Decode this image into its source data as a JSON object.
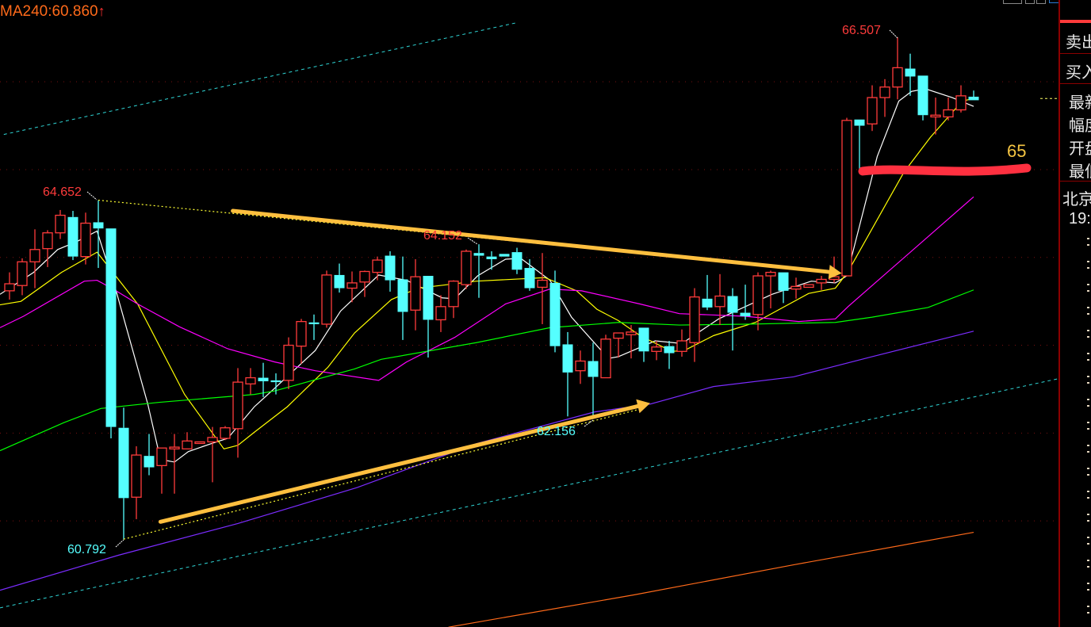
{
  "header": {
    "ma240_label": "MA240:60.860",
    "ma240_arrow": "↑"
  },
  "annotations": {
    "high_label": "66.507",
    "peak1_label": "64.652",
    "peak2_label": "64.152",
    "low1_label": "60.792",
    "low2_label": "62.156",
    "level_label": "65"
  },
  "right_panel": {
    "rows": [
      "卖出",
      "买入",
      "最新",
      "幅度",
      "开盘",
      "最低",
      "北京",
      "19:"
    ]
  },
  "colors": {
    "up": "#ff3b3b",
    "down": "#55ffff",
    "ma5": "#ffffff",
    "ma10": "#ffff00",
    "ma20": "#ff00ff",
    "ma60": "#00ff00",
    "ma120": "#7b2cff",
    "ma240": "#ff6a1a",
    "channel": "#2fd6d6",
    "arrows": "#ffbf3f",
    "highlight": "#ff3040",
    "grid": "#7a1010"
  },
  "chart_data": {
    "type": "candlestick",
    "title": "",
    "ylim": [
      59.8,
      67.0
    ],
    "grid": true,
    "grid_levels": [
      66,
      65,
      64,
      63,
      62,
      61
    ],
    "candles": [
      [
        63.62,
        63.7,
        63.83,
        63.52
      ],
      [
        63.68,
        63.95,
        63.99,
        63.57
      ],
      [
        63.95,
        64.09,
        64.32,
        63.65
      ],
      [
        64.1,
        64.28,
        64.31,
        63.89
      ],
      [
        64.28,
        64.48,
        64.54,
        64.21
      ],
      [
        64.46,
        64.01,
        64.53,
        63.97
      ],
      [
        64.01,
        64.39,
        64.51,
        63.92
      ],
      [
        64.4,
        64.33,
        64.65,
        63.88
      ],
      [
        64.33,
        62.07,
        64.33,
        61.94
      ],
      [
        62.06,
        61.26,
        62.29,
        60.79
      ],
      [
        61.27,
        61.75,
        61.85,
        61.02
      ],
      [
        61.74,
        61.61,
        61.99,
        61.52
      ],
      [
        61.63,
        61.83,
        61.83,
        61.31
      ],
      [
        61.82,
        61.84,
        61.99,
        61.31
      ],
      [
        61.82,
        61.91,
        62.01,
        61.82
      ],
      [
        61.9,
        61.9,
        61.9,
        61.9
      ],
      [
        61.9,
        61.95,
        62.07,
        61.44
      ],
      [
        61.94,
        62.06,
        62.08,
        61.92
      ],
      [
        62.05,
        62.58,
        62.74,
        61.72
      ],
      [
        62.56,
        62.63,
        62.74,
        62.44
      ],
      [
        62.63,
        62.59,
        62.8,
        62.41
      ],
      [
        62.6,
        62.58,
        62.68,
        62.44
      ],
      [
        62.6,
        63.0,
        63.09,
        62.5
      ],
      [
        62.99,
        63.27,
        63.3,
        62.79
      ],
      [
        63.26,
        63.24,
        63.35,
        63.06
      ],
      [
        63.24,
        63.8,
        63.85,
        63.2
      ],
      [
        63.8,
        63.65,
        63.93,
        63.6
      ],
      [
        63.65,
        63.71,
        63.84,
        63.49
      ],
      [
        63.72,
        63.84,
        63.85,
        63.55
      ],
      [
        63.83,
        63.97,
        64.01,
        63.74
      ],
      [
        64.02,
        63.74,
        64.07,
        63.61
      ],
      [
        63.75,
        63.38,
        64.01,
        63.06
      ],
      [
        63.4,
        63.78,
        63.98,
        63.17
      ],
      [
        63.79,
        63.29,
        63.79,
        62.86
      ],
      [
        63.29,
        63.44,
        63.57,
        63.15
      ],
      [
        63.44,
        63.73,
        63.74,
        63.31
      ],
      [
        63.69,
        64.07,
        64.09,
        63.64
      ],
      [
        64.05,
        64.02,
        64.15,
        63.54
      ],
      [
        64.01,
        63.98,
        64.07,
        63.86
      ],
      [
        64.04,
        64.01,
        64.04,
        64.01
      ],
      [
        64.06,
        63.86,
        64.11,
        63.81
      ],
      [
        63.88,
        63.65,
        63.98,
        63.62
      ],
      [
        63.66,
        63.74,
        64.05,
        63.24
      ],
      [
        63.71,
        62.99,
        63.85,
        62.92
      ],
      [
        63.01,
        62.69,
        63.15,
        62.19
      ],
      [
        62.71,
        62.82,
        62.94,
        62.56
      ],
      [
        62.82,
        62.64,
        63.03,
        62.16
      ],
      [
        62.63,
        63.07,
        63.12,
        62.63
      ],
      [
        63.08,
        63.14,
        63.14,
        62.86
      ],
      [
        63.12,
        63.15,
        63.23,
        62.85
      ],
      [
        63.2,
        62.93,
        63.2,
        62.81
      ],
      [
        62.93,
        62.98,
        63.05,
        62.83
      ],
      [
        62.99,
        62.91,
        63.05,
        62.73
      ],
      [
        62.93,
        63.05,
        63.18,
        62.87
      ],
      [
        63.03,
        63.55,
        63.65,
        62.81
      ],
      [
        63.53,
        63.43,
        63.8,
        63.4
      ],
      [
        63.44,
        63.56,
        63.81,
        63.23
      ],
      [
        63.56,
        63.37,
        63.65,
        62.94
      ],
      [
        63.37,
        63.33,
        63.69,
        63.29
      ],
      [
        63.35,
        63.79,
        63.83,
        63.17
      ],
      [
        63.79,
        63.83,
        63.85,
        63.42
      ],
      [
        63.83,
        63.62,
        63.83,
        63.48
      ],
      [
        63.64,
        63.67,
        63.77,
        63.53
      ],
      [
        63.66,
        63.69,
        63.69,
        63.66
      ],
      [
        63.71,
        63.75,
        63.79,
        63.63
      ],
      [
        63.75,
        63.78,
        64.01,
        63.71
      ],
      [
        63.79,
        65.56,
        65.59,
        63.79
      ],
      [
        65.57,
        65.5,
        65.57,
        64.98
      ],
      [
        65.52,
        65.82,
        65.96,
        65.44
      ],
      [
        65.82,
        65.94,
        66.03,
        65.6
      ],
      [
        65.94,
        66.16,
        66.507,
        65.8
      ],
      [
        66.15,
        66.06,
        66.32,
        65.84
      ],
      [
        66.07,
        65.62,
        66.07,
        65.56
      ],
      [
        65.6,
        65.62,
        65.82,
        65.4
      ],
      [
        65.6,
        65.68,
        65.82,
        65.56
      ],
      [
        65.68,
        65.84,
        65.96,
        65.65
      ],
      [
        65.83,
        65.79,
        65.9,
        65.79
      ]
    ],
    "candle_fields": [
      "open",
      "close",
      "high",
      "low"
    ],
    "moving_averages": [
      {
        "key": "ma5",
        "points": [
          [
            -0.75,
            63.58
          ],
          [
            1.9,
            63.83
          ],
          [
            3.8,
            64.09
          ],
          [
            5.3,
            64.18
          ],
          [
            6.9,
            64.3
          ],
          [
            8.4,
            63.62
          ],
          [
            10.9,
            62.33
          ],
          [
            11.9,
            61.7
          ],
          [
            13,
            61.67
          ],
          [
            14.1,
            61.79
          ],
          [
            15.9,
            61.88
          ],
          [
            17.2,
            61.94
          ],
          [
            19.3,
            62.3
          ],
          [
            20.9,
            62.51
          ],
          [
            24.1,
            62.94
          ],
          [
            26.1,
            63.39
          ],
          [
            29.1,
            63.8
          ],
          [
            31.3,
            63.74
          ],
          [
            34.1,
            63.54
          ],
          [
            35.1,
            63.53
          ],
          [
            36.9,
            63.79
          ],
          [
            39.1,
            63.98
          ],
          [
            40.3,
            63.99
          ],
          [
            42.6,
            63.74
          ],
          [
            44.3,
            63.32
          ],
          [
            47.2,
            62.85
          ],
          [
            48,
            62.87
          ],
          [
            50.9,
            63.05
          ],
          [
            53,
            63.02
          ],
          [
            55.9,
            63.3
          ],
          [
            60.1,
            63.58
          ],
          [
            63.2,
            63.73
          ],
          [
            65.1,
            63.71
          ],
          [
            66,
            63.79
          ],
          [
            68.4,
            65.15
          ],
          [
            70.1,
            65.78
          ],
          [
            71.1,
            65.89
          ],
          [
            72.2,
            65.92
          ],
          [
            74.3,
            65.82
          ],
          [
            76,
            65.72
          ]
        ]
      },
      {
        "key": "ma10",
        "points": [
          [
            -0.75,
            63.46
          ],
          [
            0.9,
            63.5
          ],
          [
            4.1,
            63.83
          ],
          [
            6.9,
            64.06
          ],
          [
            10.1,
            63.47
          ],
          [
            13.8,
            62.44
          ],
          [
            16.9,
            61.82
          ],
          [
            18,
            61.86
          ],
          [
            19.3,
            62.01
          ],
          [
            21.9,
            62.3
          ],
          [
            25.1,
            62.75
          ],
          [
            27.2,
            63.14
          ],
          [
            30.1,
            63.52
          ],
          [
            32.2,
            63.65
          ],
          [
            36.8,
            63.73
          ],
          [
            42.2,
            63.77
          ],
          [
            44.7,
            63.62
          ],
          [
            46.3,
            63.41
          ],
          [
            48,
            63.28
          ],
          [
            49.7,
            63.11
          ],
          [
            52.2,
            62.93
          ],
          [
            53.2,
            62.94
          ],
          [
            55.5,
            63.11
          ],
          [
            58.8,
            63.26
          ],
          [
            63,
            63.59
          ],
          [
            65.1,
            63.65
          ],
          [
            66.1,
            63.84
          ],
          [
            70.5,
            64.97
          ],
          [
            72.6,
            65.37
          ],
          [
            75.1,
            65.78
          ],
          [
            76,
            65.81
          ]
        ]
      },
      {
        "key": "ma20",
        "points": [
          [
            -0.75,
            63.2
          ],
          [
            1.1,
            63.33
          ],
          [
            5.9,
            63.73
          ],
          [
            6.9,
            63.74
          ],
          [
            8.4,
            63.62
          ],
          [
            10.1,
            63.47
          ],
          [
            13.4,
            63.21
          ],
          [
            17.2,
            62.96
          ],
          [
            20.9,
            62.81
          ],
          [
            24.1,
            62.71
          ],
          [
            29.1,
            62.6
          ],
          [
            31.3,
            62.81
          ],
          [
            35.1,
            63.09
          ],
          [
            39.1,
            63.47
          ],
          [
            42.6,
            63.64
          ],
          [
            45.1,
            63.62
          ],
          [
            49.7,
            63.47
          ],
          [
            52.8,
            63.36
          ],
          [
            58,
            63.33
          ],
          [
            62.2,
            63.27
          ],
          [
            65.1,
            63.3
          ],
          [
            66.1,
            63.44
          ],
          [
            68,
            63.68
          ],
          [
            76,
            64.69
          ]
        ]
      },
      {
        "key": "ma60",
        "points": [
          [
            -0.75,
            61.8
          ],
          [
            4.3,
            62.12
          ],
          [
            7.2,
            62.28
          ],
          [
            11.8,
            62.35
          ],
          [
            19.3,
            62.44
          ],
          [
            20.9,
            62.48
          ],
          [
            27.2,
            62.73
          ],
          [
            29.3,
            62.84
          ],
          [
            36.8,
            63.03
          ],
          [
            42.6,
            63.2
          ],
          [
            48,
            63.26
          ],
          [
            52.8,
            63.23
          ],
          [
            58,
            63.24
          ],
          [
            65.1,
            63.26
          ],
          [
            68,
            63.32
          ],
          [
            72.4,
            63.43
          ],
          [
            76,
            63.63
          ]
        ]
      },
      {
        "key": "ma120",
        "points": [
          [
            -0.75,
            60.21
          ],
          [
            8.6,
            60.61
          ],
          [
            18,
            60.97
          ],
          [
            27.4,
            61.38
          ],
          [
            36.8,
            61.88
          ],
          [
            46.1,
            62.24
          ],
          [
            50.5,
            62.33
          ],
          [
            55.5,
            62.53
          ],
          [
            61.8,
            62.64
          ],
          [
            68,
            62.87
          ],
          [
            76,
            63.16
          ]
        ]
      },
      {
        "key": "ma240",
        "points": [
          [
            34.6,
            59.79
          ],
          [
            49.3,
            60.16
          ],
          [
            61.8,
            60.5
          ],
          [
            76,
            60.87
          ]
        ]
      }
    ],
    "channel_lines": [
      [
        [
          -0.45,
          65.4
        ],
        [
          39.9,
          66.67
        ]
      ],
      [
        [
          -0.75,
          60.01
        ],
        [
          82.7,
          62.62
        ]
      ]
    ],
    "trend_lines": [
      [
        [
          7,
          64.652
        ],
        [
          65.5,
          63.82
        ]
      ],
      [
        [
          9,
          60.792
        ],
        [
          49.9,
          62.28
        ]
      ]
    ],
    "arrows": [
      [
        [
          17.6,
          64.53
        ],
        [
          65.6,
          63.82
        ]
      ],
      [
        [
          11.9,
          60.99
        ],
        [
          50.5,
          62.34
        ]
      ]
    ],
    "highlight_level": 65.0
  }
}
